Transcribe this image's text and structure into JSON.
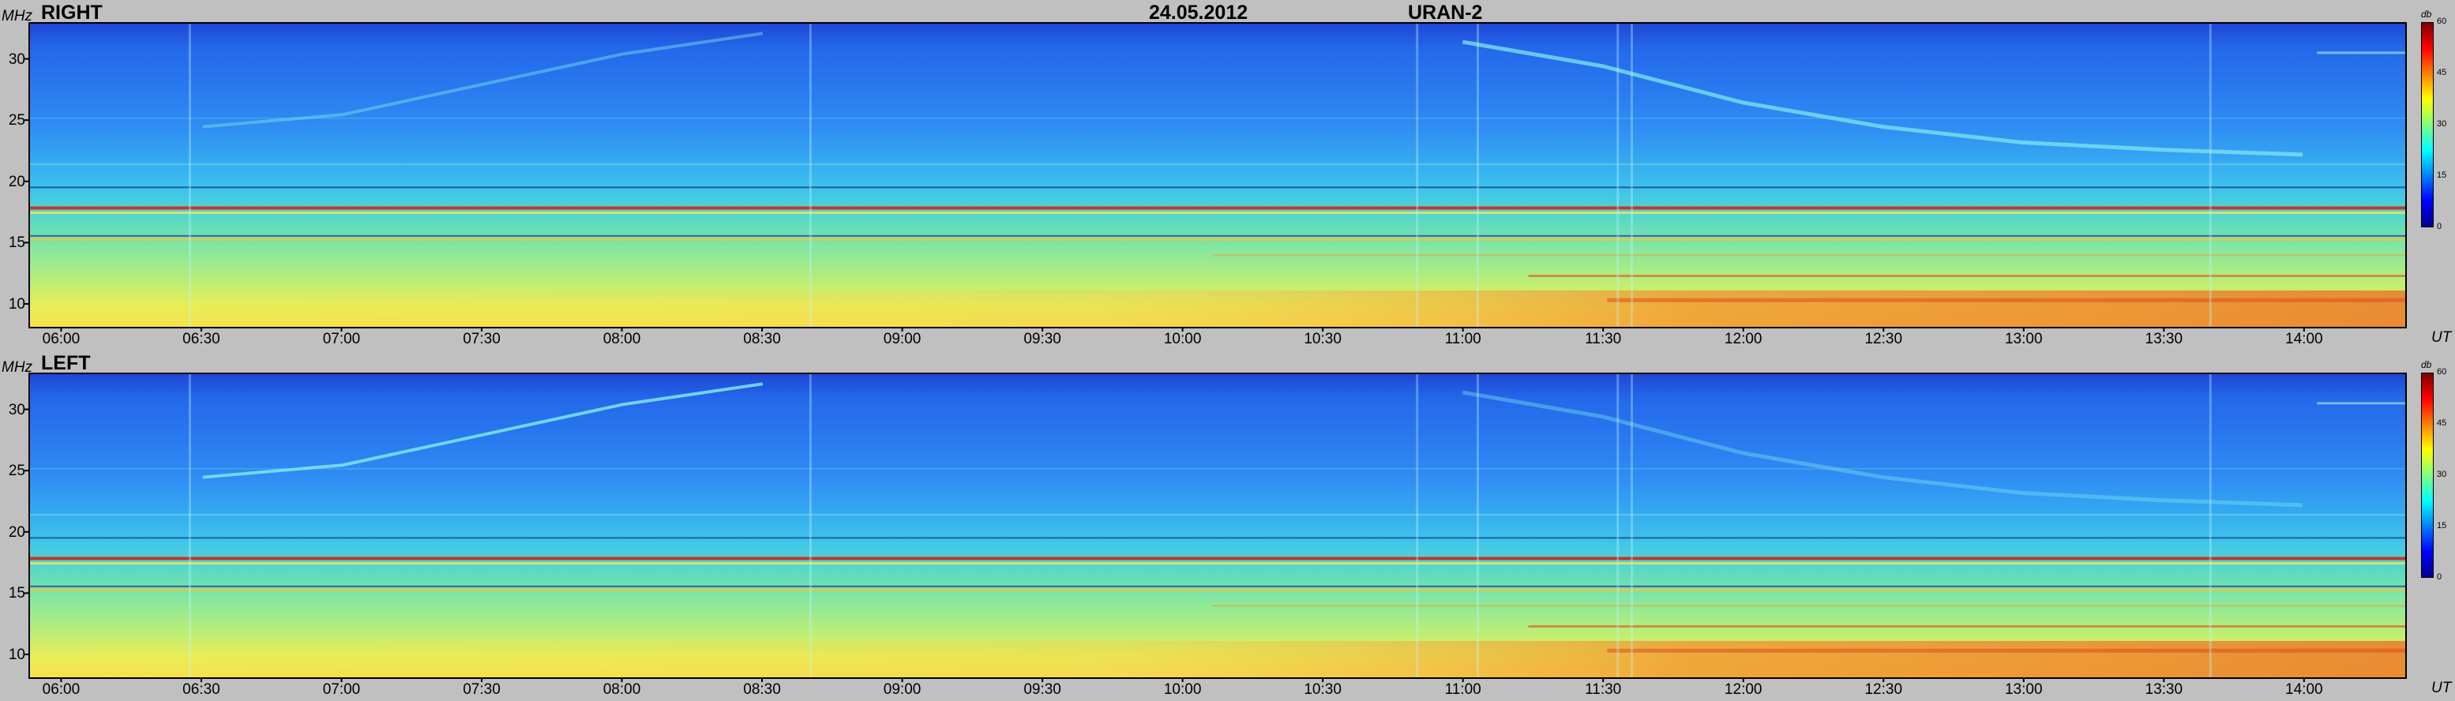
{
  "header": {
    "date": "24.05.2012",
    "instrument": "URAN-2"
  },
  "chart_data": [
    {
      "type": "heatmap",
      "title": "RIGHT",
      "ylabel": "MHz",
      "xlabel": "UT",
      "y_ticks": [
        10,
        15,
        20,
        25,
        30
      ],
      "x_ticks": [
        "06:00",
        "06:30",
        "07:00",
        "07:30",
        "08:00",
        "08:30",
        "09:00",
        "09:30",
        "10:00",
        "10:30",
        "11:00",
        "11:30",
        "12:00",
        "12:30",
        "13:00",
        "13:30",
        "14:00"
      ],
      "ylim": [
        8,
        33
      ],
      "xlim": [
        "05:53",
        "14:22"
      ],
      "colorbar": {
        "unit": "db",
        "ticks": [
          0,
          15,
          30,
          45,
          60
        ],
        "range": [
          0,
          60
        ]
      }
    },
    {
      "type": "heatmap",
      "title": "LEFT",
      "ylabel": "MHz",
      "xlabel": "UT",
      "y_ticks": [
        10,
        15,
        20,
        25,
        30
      ],
      "x_ticks": [
        "06:00",
        "06:30",
        "07:00",
        "07:30",
        "08:00",
        "08:30",
        "09:00",
        "09:30",
        "10:00",
        "10:30",
        "11:00",
        "11:30",
        "12:00",
        "12:30",
        "13:00",
        "13:30",
        "14:00"
      ],
      "ylim": [
        8,
        33
      ],
      "xlim": [
        "05:53",
        "14:22"
      ],
      "colorbar": {
        "unit": "db",
        "ticks": [
          0,
          15,
          30,
          45,
          60
        ],
        "range": [
          0,
          60
        ]
      }
    }
  ]
}
